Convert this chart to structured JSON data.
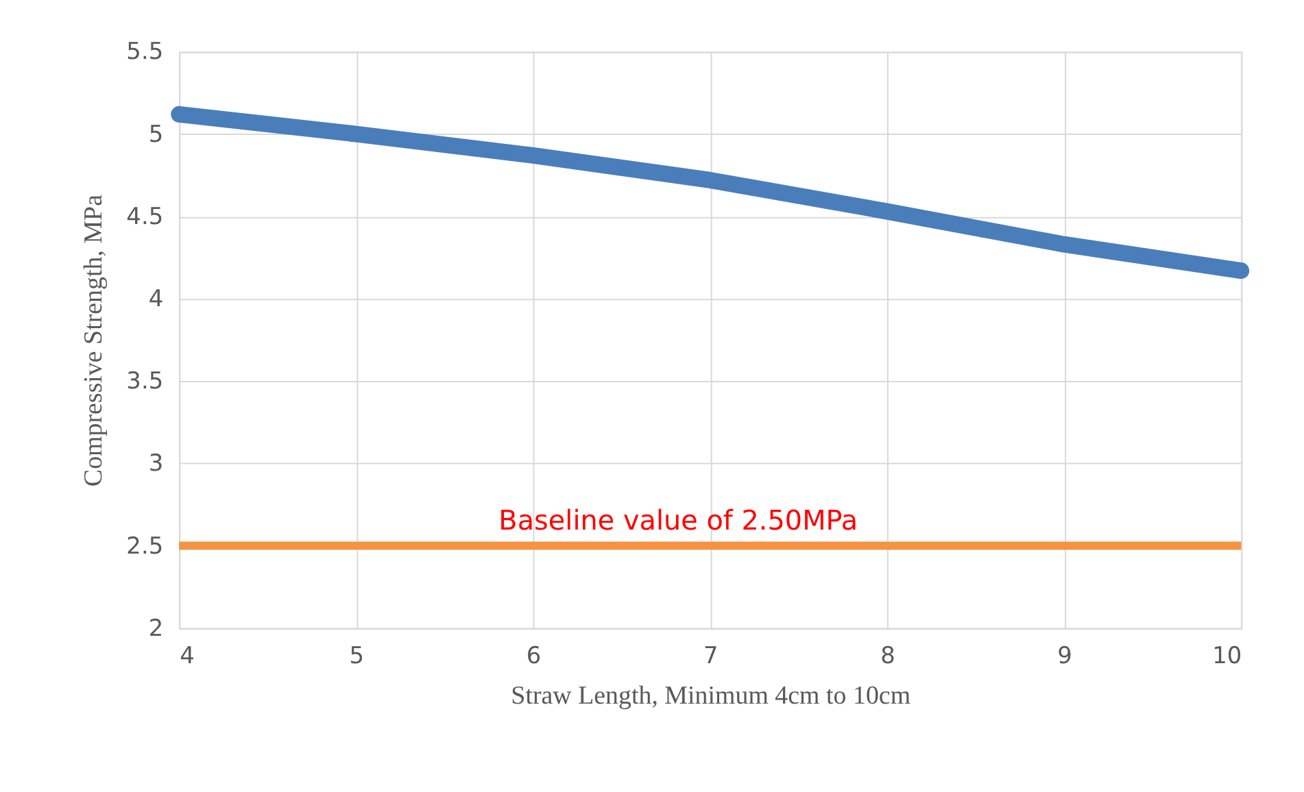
{
  "chart_data": {
    "type": "line",
    "xlabel": "Straw Length, Minimum 4cm to 10cm",
    "ylabel": "Compressive Strength, MPa",
    "x": [
      4,
      5,
      6,
      7,
      8,
      9,
      10
    ],
    "series": [
      {
        "color": "#4a7ebb",
        "values": [
          5.12,
          5.0,
          4.87,
          4.72,
          4.53,
          4.33,
          4.17
        ]
      }
    ],
    "ref_lines": [
      {
        "axis": "y",
        "value": 2.5,
        "label": "Baseline value of 2.50MPa",
        "color": "#f59342",
        "line_style": "solid"
      }
    ],
    "xlim": [
      4,
      10
    ],
    "xticks": [
      4,
      5,
      6,
      7,
      8,
      9,
      10
    ],
    "ylim": [
      2,
      5.5
    ],
    "yticks": [
      2,
      2.5,
      3,
      3.5,
      4,
      4.5,
      5,
      5.5
    ],
    "grid": true,
    "line_style": "solid"
  }
}
